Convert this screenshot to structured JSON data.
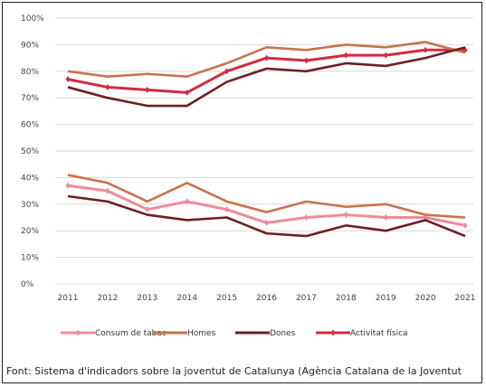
{
  "chart_data": {
    "type": "line",
    "x": [
      "2011",
      "2012",
      "2013",
      "2014",
      "2015",
      "2016",
      "2017",
      "2018",
      "2019",
      "2020",
      "2021"
    ],
    "ylim": [
      0,
      100
    ],
    "yticks": [
      "0%",
      "10%",
      "20%",
      "30%",
      "40%",
      "50%",
      "60%",
      "70%",
      "80%",
      "90%",
      "100%"
    ],
    "grid": true,
    "legend_position": "bottom",
    "series": [
      {
        "group": "Consum de tabac",
        "name": "Consum de tabac",
        "color": "#f08a9a",
        "markers": true,
        "values": [
          37,
          35,
          28,
          31,
          28,
          23,
          25,
          26,
          25,
          25,
          22
        ]
      },
      {
        "group": "Consum de tabac",
        "name": "Homes",
        "color": "#c8734e",
        "markers": false,
        "values": [
          41,
          38,
          31,
          38,
          31,
          27,
          31,
          29,
          30,
          26,
          25
        ]
      },
      {
        "group": "Consum de tabac",
        "name": "Dones",
        "color": "#6e1f22",
        "markers": false,
        "values": [
          33,
          31,
          26,
          24,
          25,
          19,
          18,
          22,
          20,
          24,
          18
        ]
      },
      {
        "group": "Activitat física",
        "name": "Activitat física",
        "color": "#d22b40",
        "markers": true,
        "values": [
          77,
          74,
          73,
          72,
          80,
          85,
          84,
          86,
          86,
          88,
          88
        ]
      },
      {
        "group": "Activitat física",
        "name": "Homes",
        "color": "#c8734e",
        "markers": false,
        "values": [
          80,
          78,
          79,
          78,
          83,
          89,
          88,
          90,
          89,
          91,
          87
        ]
      },
      {
        "group": "Activitat física",
        "name": "Dones",
        "color": "#6e1f22",
        "markers": false,
        "values": [
          74,
          70,
          67,
          67,
          76,
          81,
          80,
          83,
          82,
          85,
          89
        ]
      }
    ],
    "legend": [
      {
        "label": "Consum de tabac",
        "color": "#f08a9a",
        "marker": true
      },
      {
        "label": "Homes",
        "color": "#c8734e",
        "marker": false
      },
      {
        "label": "Dones",
        "color": "#6e1f22",
        "marker": false
      },
      {
        "label": "Activitat física",
        "color": "#d22b40",
        "marker": true
      }
    ]
  },
  "source": "Font: Sistema d'indicadors sobre la joventut de Catalunya (Agència Catalana de la Joventut"
}
